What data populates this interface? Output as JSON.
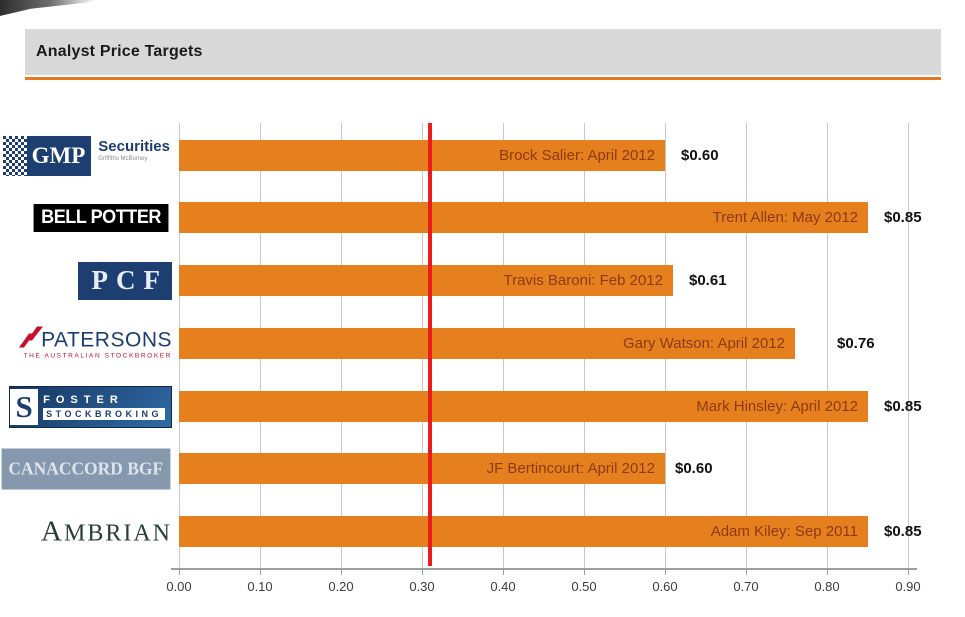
{
  "header": {
    "title": "Analyst Price Targets"
  },
  "chart_data": {
    "type": "bar",
    "orientation": "horizontal",
    "title": "Analyst Price Targets",
    "xlabel": "",
    "ylabel": "",
    "xlim": [
      0.0,
      0.9
    ],
    "gridline_interval": 0.1,
    "grid": true,
    "x_tick_labels": [
      "0.00",
      "0.10",
      "0.20",
      "0.30",
      "0.40",
      "0.50",
      "0.60",
      "0.70",
      "0.80",
      "0.90"
    ],
    "bar_color": "#E6801E",
    "bar_label_color": "#8D3A10",
    "reference_line": {
      "value": 0.31,
      "color": "#ED1C1C"
    },
    "bars": [
      {
        "firm": "GMP Securities",
        "analyst_label": "Brock Salier: April 2012",
        "value": 0.6,
        "value_label": "$0.60",
        "logo": {
          "type": "gmp",
          "primary": "GMP",
          "secondary": "Securities",
          "tagline": "Griffiths McBurney"
        }
      },
      {
        "firm": "Bell Potter",
        "analyst_label": "Trent Allen: May 2012",
        "value": 0.85,
        "value_label": "$0.85",
        "logo": {
          "type": "bell-potter",
          "text": "BELL POTTER"
        }
      },
      {
        "firm": "PCF",
        "analyst_label": "Travis Baroni: Feb 2012",
        "value": 0.61,
        "value_label": "$0.61",
        "logo": {
          "type": "pcf",
          "text": "PCF"
        }
      },
      {
        "firm": "Patersons",
        "analyst_label": "Gary Watson: April 2012",
        "value": 0.76,
        "value_label": "$0.76",
        "logo": {
          "type": "patersons",
          "text": "PATERSONS",
          "tagline": "THE AUSTRALIAN STOCKBROKER"
        }
      },
      {
        "firm": "Foster Stockbroking",
        "analyst_label": "Mark Hinsley: April 2012",
        "value": 0.85,
        "value_label": "$0.85",
        "logo": {
          "type": "foster",
          "text": "FOSTER",
          "tagline": "STOCKBROKING",
          "monogram": "S"
        }
      },
      {
        "firm": "Canaccord BGF",
        "analyst_label": "JF Bertincourt: April 2012",
        "value": 0.6,
        "value_label": "$0.60",
        "logo": {
          "type": "canaccord",
          "text": "CANACCORD BGF"
        }
      },
      {
        "firm": "Ambrian",
        "analyst_label": "Adam Kiley: Sep 2011",
        "value": 0.85,
        "value_label": "$0.85",
        "logo": {
          "type": "ambrian",
          "text": "AMBRIAN"
        }
      }
    ]
  }
}
